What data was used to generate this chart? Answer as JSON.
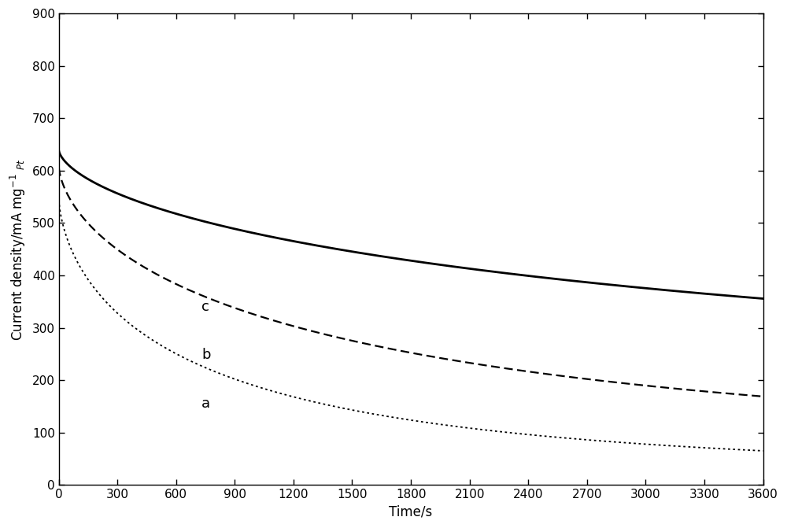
{
  "title": "",
  "xlabel": "Time/s",
  "xlim": [
    0,
    3600
  ],
  "ylim": [
    0,
    900
  ],
  "xticks": [
    0,
    300,
    600,
    900,
    1200,
    1500,
    1800,
    2100,
    2400,
    2700,
    3000,
    3300,
    3600
  ],
  "yticks": [
    0,
    100,
    200,
    300,
    400,
    500,
    600,
    700,
    800,
    900
  ],
  "curve_c": {
    "label": "c",
    "style": "solid",
    "color": "black",
    "linewidth": 2.0,
    "y0": 640,
    "yinf": 155,
    "k": 0.0055,
    "alpha": 0.62
  },
  "curve_b": {
    "label": "b",
    "style": "dashed",
    "color": "black",
    "linewidth": 1.6,
    "y0": 610,
    "yinf": 58,
    "k": 0.01,
    "alpha": 0.62,
    "dashes": [
      5,
      2.5
    ]
  },
  "curve_a": {
    "label": "a",
    "style": "dotted",
    "color": "black",
    "linewidth": 1.3,
    "y0": 550,
    "yinf": 25,
    "k": 0.016,
    "alpha": 0.62,
    "dashes": [
      1.5,
      2.0
    ]
  },
  "label_positions": {
    "c": [
      730,
      340
    ],
    "b": [
      730,
      248
    ],
    "a": [
      730,
      155
    ]
  },
  "background_color": "#ffffff",
  "figure_width": 10.0,
  "figure_height": 6.71
}
